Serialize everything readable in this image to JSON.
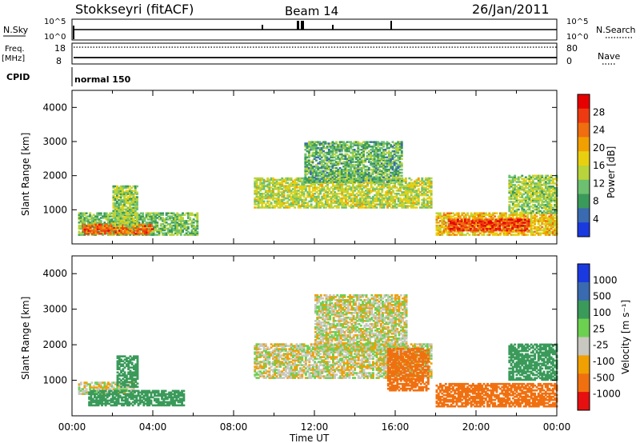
{
  "header": {
    "station": "Stokkseyri (fitACF)",
    "beam": "Beam 14",
    "date": "26/Jan/2011"
  },
  "strips": {
    "nsky_label": "N.Sky",
    "nsky_ticks": [
      "10^5",
      "10^0"
    ],
    "nsearch_label": "N.Search",
    "nsearch_ticks": [
      "10^5",
      "10^0"
    ],
    "freq_label": "Freq.",
    "freq_unit": "[MHz]",
    "freq_ticks": [
      "18",
      "8"
    ],
    "nave_label": "Nave",
    "nave_ticks": [
      "80",
      "0"
    ],
    "cpid_label": "CPID",
    "cpid_value": "normal 150"
  },
  "chart_data": [
    {
      "type": "heatmap",
      "panel": "power",
      "ylabel": "Slant Range [km]",
      "xlabel": "Time UT",
      "x_range_hours": [
        0,
        24
      ],
      "xticks": [
        "00:00",
        "04:00",
        "08:00",
        "12:00",
        "16:00",
        "20:00",
        "00:00"
      ],
      "ylim": [
        0,
        4500
      ],
      "yticks": [
        "1000",
        "2000",
        "3000",
        "4000"
      ],
      "colorbar": {
        "label": "Power [dB]",
        "ticks": [
          "28",
          "24",
          "20",
          "16",
          "12",
          "8",
          "4"
        ],
        "colors": [
          "#e60000",
          "#ee3a10",
          "#f06d10",
          "#f0a000",
          "#e8d010",
          "#b8d43a",
          "#6cc070",
          "#3a9a5a",
          "#3a6ab0",
          "#1a3ae0"
        ]
      },
      "regions": [
        {
          "t0": 0.3,
          "t1": 6.2,
          "r0": 250,
          "r1": 900,
          "power": 10
        },
        {
          "t0": 0.5,
          "t1": 4.0,
          "r0": 280,
          "r1": 560,
          "power": 24
        },
        {
          "t0": 2.0,
          "t1": 3.2,
          "r0": 500,
          "r1": 1700,
          "power": 12
        },
        {
          "t0": 9.0,
          "t1": 17.8,
          "r0": 1050,
          "r1": 1950,
          "power": 14
        },
        {
          "t0": 11.5,
          "t1": 16.3,
          "r0": 1800,
          "r1": 3000,
          "power": 9
        },
        {
          "t0": 18.0,
          "t1": 24.0,
          "r0": 250,
          "r1": 900,
          "power": 18
        },
        {
          "t0": 18.6,
          "t1": 22.6,
          "r0": 380,
          "r1": 720,
          "power": 27
        },
        {
          "t0": 21.6,
          "t1": 24.0,
          "r0": 900,
          "r1": 2000,
          "power": 12
        }
      ]
    },
    {
      "type": "heatmap",
      "panel": "velocity",
      "ylabel": "Slant Range [km]",
      "xlabel": "Time UT",
      "x_range_hours": [
        0,
        24
      ],
      "xticks": [
        "00:00",
        "04:00",
        "08:00",
        "12:00",
        "16:00",
        "20:00",
        "00:00"
      ],
      "ylim": [
        0,
        4500
      ],
      "yticks": [
        "1000",
        "2000",
        "3000",
        "4000"
      ],
      "colorbar": {
        "label": "Velocity [m s⁻¹]",
        "ticks": [
          "1000",
          "500",
          "100",
          "25",
          "-25",
          "-100",
          "-500",
          "-1000"
        ],
        "colors": [
          "#1a3ae0",
          "#3a6ab0",
          "#3a9a5a",
          "#6cd050",
          "#c8c8c0",
          "#f0a000",
          "#f07010",
          "#e61010"
        ]
      },
      "regions": [
        {
          "t0": 0.3,
          "t1": 3.0,
          "r0": 600,
          "r1": 950,
          "velocity": 0
        },
        {
          "t0": 0.8,
          "t1": 5.5,
          "r0": 280,
          "r1": 700,
          "velocity": 150
        },
        {
          "t0": 2.2,
          "t1": 3.2,
          "r0": 800,
          "r1": 1700,
          "velocity": 200
        },
        {
          "t0": 9.0,
          "t1": 17.8,
          "r0": 1050,
          "r1": 2000,
          "velocity": 0
        },
        {
          "t0": 12.0,
          "t1": 16.5,
          "r0": 1800,
          "r1": 3400,
          "velocity": 0
        },
        {
          "t0": 15.6,
          "t1": 17.6,
          "r0": 700,
          "r1": 1900,
          "velocity": -200
        },
        {
          "t0": 18.0,
          "t1": 24.0,
          "r0": 250,
          "r1": 900,
          "velocity": -150
        },
        {
          "t0": 21.6,
          "t1": 24.0,
          "r0": 1000,
          "r1": 2000,
          "velocity": 120
        }
      ]
    }
  ]
}
